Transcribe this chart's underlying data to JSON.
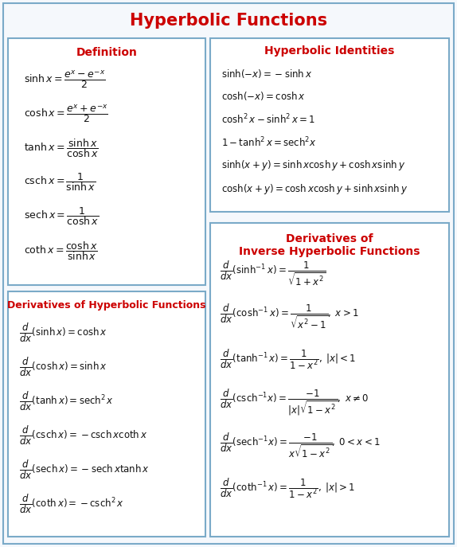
{
  "title": "Hyperbolic Functions",
  "title_color": "#CC0000",
  "title_fontsize": 15,
  "bg_color": "#f5f8fc",
  "box_bg": "#ffffff",
  "box_edge_color": "#7aaac8",
  "box_edge_width": 1.5,
  "outer_edge_color": "#7aaac8",
  "section_title_color": "#CC0000",
  "section_title_fontsize": 10,
  "formula_fontsize": 9,
  "formula_color": "#111111",
  "def_title": "Definition",
  "def_formulas": [
    "$\\sinh x = \\dfrac{e^{x} - e^{-x}}{2}$",
    "$\\cosh x = \\dfrac{e^{x} + e^{-x}}{2}$",
    "$\\tanh x = \\dfrac{\\sinh x}{\\cosh x}$",
    "$\\mathrm{csch}\\, x = \\dfrac{1}{\\sinh x}$",
    "$\\mathrm{sech}\\, x = \\dfrac{1}{\\cosh x}$",
    "$\\coth x = \\dfrac{\\cosh x}{\\sinh x}$"
  ],
  "ident_title": "Hyperbolic Identities",
  "ident_formulas": [
    "$\\sinh(-x) = -\\sinh x$",
    "$\\cosh(-x) = \\cosh x$",
    "$\\cosh^{2} x - \\sinh^{2} x = 1$",
    "$1 - \\tanh^{2} x = \\mathrm{sech}^{2} x$",
    "$\\sinh(x + y) = \\sinh x\\cosh y + \\cosh x\\sinh y$",
    "$\\cosh(x + y) = \\cosh x\\cosh y + \\sinh x\\sinh y$"
  ],
  "deriv_title": "Derivatives of Hyperbolic Functions",
  "deriv_formulas": [
    "$\\dfrac{d}{dx}(\\sinh x) = \\cosh x$",
    "$\\dfrac{d}{dx}(\\cosh x) = \\sinh x$",
    "$\\dfrac{d}{dx}(\\tanh x) = \\mathrm{sech}^{2}\\, x$",
    "$\\dfrac{d}{dx}(\\mathrm{csch}\\, x) = -\\mathrm{csch}\\, x\\coth x$",
    "$\\dfrac{d}{dx}(\\mathrm{sech}\\, x) = -\\mathrm{sech}\\, x\\tanh x$",
    "$\\dfrac{d}{dx}(\\coth x) = -\\mathrm{csch}^{2}\\, x$"
  ],
  "inv_title": "Derivatives of\nInverse Hyperbolic Functions",
  "inv_formulas": [
    "$\\dfrac{d}{dx}\\left(\\sinh^{-1} x\\right) = \\dfrac{1}{\\sqrt{1 + x^{2}}}$",
    "$\\dfrac{d}{dx}\\left(\\cosh^{-1} x\\right) = \\dfrac{1}{\\sqrt{x^{2}-1}},\\; x > 1$",
    "$\\dfrac{d}{dx}\\left(\\tanh^{-1} x\\right) = \\dfrac{1}{1-x^{2}},\\; |x| < 1$",
    "$\\dfrac{d}{dx}\\left(\\mathrm{csch}^{-1} x\\right) = \\dfrac{-1}{|x|\\sqrt{1-x^{2}}},\\; x \\neq 0$",
    "$\\dfrac{d}{dx}\\left(\\mathrm{sech}^{-1} x\\right) = \\dfrac{-1}{x\\sqrt{1-x^{2}}},\\; 0 < x < 1$",
    "$\\dfrac{d}{dx}\\left(\\coth^{-1} x\\right) = \\dfrac{1}{1-x^{2}},\\; |x| > 1$"
  ]
}
